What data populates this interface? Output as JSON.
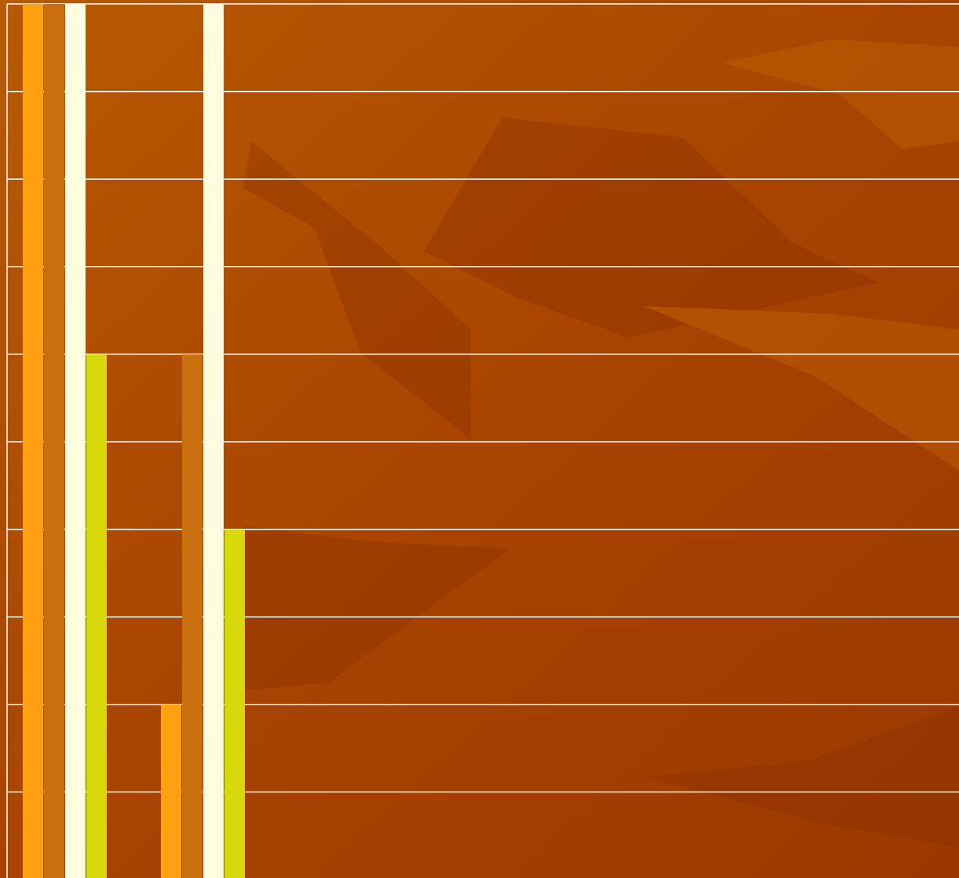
{
  "chart_data": {
    "type": "bar",
    "categories": [
      null,
      null
    ],
    "series": [
      {
        "color": "#ffa010",
        "values": [
          10,
          2
        ]
      },
      {
        "color": "#c87010",
        "values": [
          10,
          6
        ]
      },
      {
        "color": "#ffffe0",
        "values": [
          10,
          10
        ]
      },
      {
        "color": "#d8d80a",
        "values": [
          6,
          4
        ]
      }
    ],
    "ylim": [
      0,
      10
    ],
    "yticks": [
      0,
      1,
      2,
      3,
      4,
      5,
      6,
      7,
      8,
      9,
      10
    ],
    "grid": true
  }
}
